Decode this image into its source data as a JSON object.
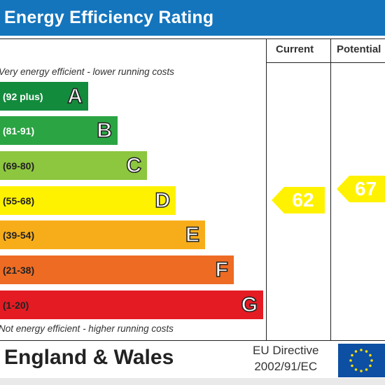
{
  "title": "Energy Efficiency Rating",
  "columns": {
    "current": "Current",
    "potential": "Potential"
  },
  "notes": {
    "top": "Very energy efficient - lower running costs",
    "bottom": "Not energy efficient - higher running costs"
  },
  "bands": [
    {
      "range": "(92 plus)",
      "letter": "A",
      "color": "#138b3d",
      "text_color": "#ffffff"
    },
    {
      "range": "(81-91)",
      "letter": "B",
      "color": "#2ba443",
      "text_color": "#ffffff"
    },
    {
      "range": "(69-80)",
      "letter": "C",
      "color": "#8dc63f",
      "text_color": "#222222"
    },
    {
      "range": "(55-68)",
      "letter": "D",
      "color": "#fff200",
      "text_color": "#222222"
    },
    {
      "range": "(39-54)",
      "letter": "E",
      "color": "#f7ad1a",
      "text_color": "#222222"
    },
    {
      "range": "(21-38)",
      "letter": "F",
      "color": "#ee6b24",
      "text_color": "#222222"
    },
    {
      "range": "(1-20)",
      "letter": "G",
      "color": "#e41b23",
      "text_color": "#222222"
    }
  ],
  "ratings": {
    "current": {
      "value": "62",
      "color": "#fff200"
    },
    "potential": {
      "value": "67",
      "color": "#fff200"
    }
  },
  "footer": {
    "region": "England & Wales",
    "directive_line1": "EU Directive",
    "directive_line2": "2002/91/EC",
    "flag_color": "#0d4fa3",
    "star_color": "#ffdd00"
  },
  "title_bar_color": "#1475bd"
}
